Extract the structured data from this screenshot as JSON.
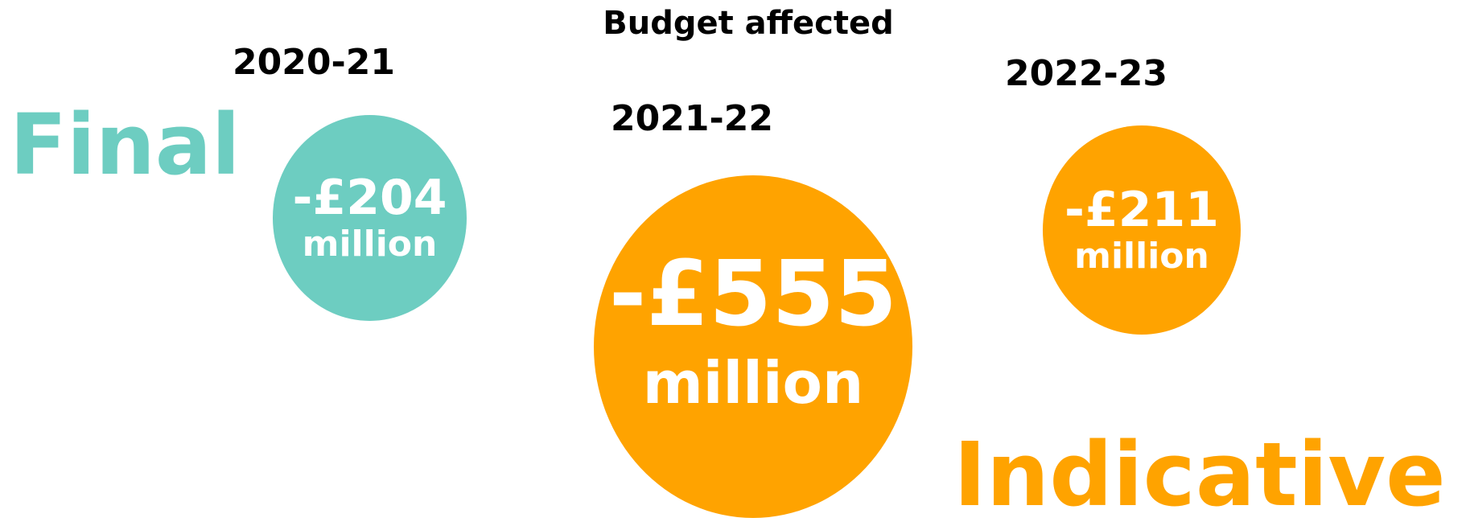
{
  "title": "Budget affected",
  "colors": {
    "final": "#6dcdc1",
    "indicative": "#ffa300",
    "text_on_bubble": "#ffffff",
    "heading": "#000000"
  },
  "labels": {
    "final": "Final",
    "indicative": "Indicative"
  },
  "bubbles": [
    {
      "year": "2020-21",
      "amount": "-£204",
      "unit": "million",
      "status": "final"
    },
    {
      "year": "2021-22",
      "amount": "-£555",
      "unit": "million",
      "status": "indicative"
    },
    {
      "year": "2022-23",
      "amount": "-£211",
      "unit": "million",
      "status": "indicative"
    }
  ]
}
